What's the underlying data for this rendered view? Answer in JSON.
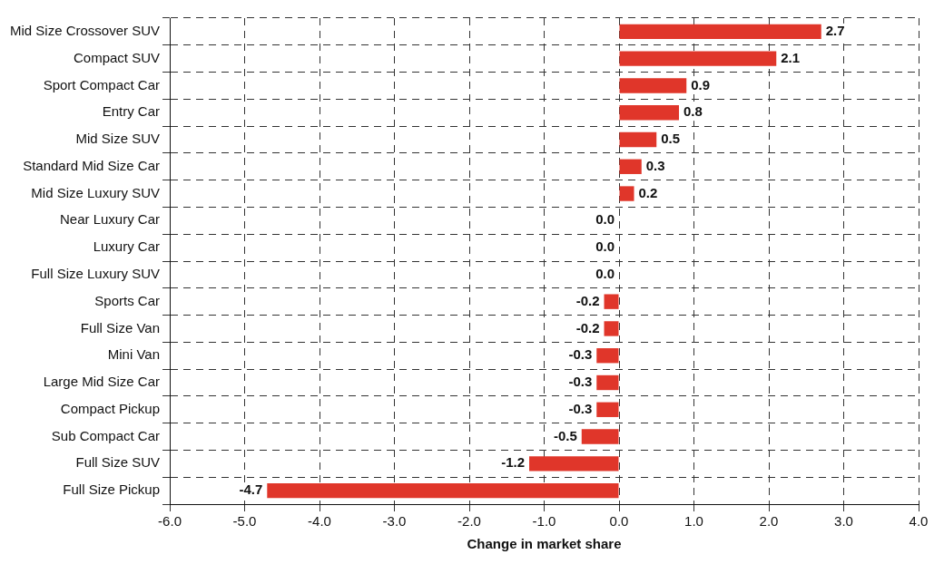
{
  "chart_data": {
    "type": "bar",
    "orientation": "horizontal",
    "xlabel": "Change in market share",
    "categories": [
      "Mid Size Crossover SUV",
      "Compact SUV",
      "Sport Compact Car",
      "Entry Car",
      "Mid Size SUV",
      "Standard Mid Size Car",
      "Mid Size Luxury SUV",
      "Near Luxury Car",
      "Luxury Car",
      "Full Size Luxury SUV",
      "Sports Car",
      "Full Size Van",
      "Mini Van",
      "Large Mid Size Car",
      "Compact Pickup",
      "Sub Compact Car",
      "Full Size SUV",
      "Full Size Pickup"
    ],
    "values": [
      2.7,
      2.1,
      0.9,
      0.8,
      0.5,
      0.3,
      0.2,
      0,
      0,
      0,
      -0.2,
      -0.2,
      -0.3,
      -0.3,
      -0.3,
      -0.5,
      -1.2,
      -4.7
    ],
    "value_labels": [
      "2.7",
      "2.1",
      "0.9",
      "0.8",
      "0.5",
      "0.3",
      "0.2",
      "0.0",
      "0.0",
      "0.0",
      "-0.2",
      "-0.2",
      "-0.3",
      "-0.3",
      "-0.3",
      "-0.5",
      "-1.2",
      "-4.7"
    ],
    "color": "#e0362a",
    "xlim": [
      -6,
      4
    ],
    "xticks": [
      {
        "value": -6,
        "label": "-6.0"
      },
      {
        "value": -5,
        "label": "-5.0"
      },
      {
        "value": -4,
        "label": "-4.0"
      },
      {
        "value": -3,
        "label": "-3.0"
      },
      {
        "value": -2,
        "label": "-2.0"
      },
      {
        "value": -1,
        "label": "-1.0"
      },
      {
        "value": 0,
        "label": "0.0"
      },
      {
        "value": 1,
        "label": "1.0"
      },
      {
        "value": 2,
        "label": "2.0"
      },
      {
        "value": 3,
        "label": "3.0"
      },
      {
        "value": 4,
        "label": "4.0"
      }
    ],
    "grid": true,
    "line_style": "dashed",
    "legend": false
  }
}
